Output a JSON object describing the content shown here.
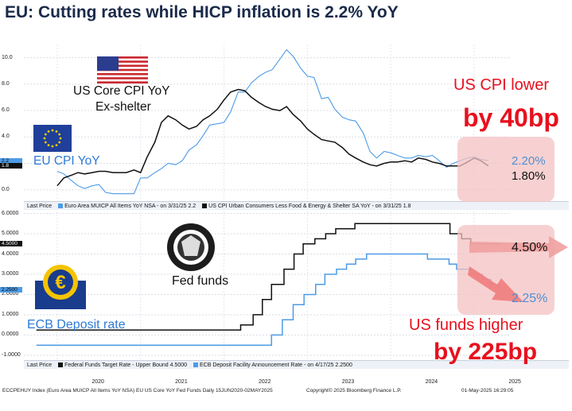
{
  "title": "EU: Cutting rates while HICP inflation is 2.2% YoY",
  "colors": {
    "eu": "#4d9be6",
    "us": "#111111",
    "red": "#e8101e",
    "pink": "#f4c2c2"
  },
  "chart_data": [
    {
      "type": "line",
      "yticks": [
        "10.0",
        "8.0",
        "6.0",
        "4.0",
        "2.0",
        "0.0"
      ],
      "ylim": [
        -0.8,
        11.0
      ],
      "last_prices": [
        "2.2",
        "1.8"
      ],
      "legend": {
        "label": "Last Price",
        "items": [
          "Euro Area MUICP All Items YoY NSA - on 3/31/25 2.2",
          "US CPI Urban Consumers Less Food & Energy & Shelter SA YoY - on 3/31/25 1.8"
        ]
      },
      "series": [
        {
          "name": "Euro Area MUICP All Items YoY NSA",
          "values": [
            [
              2020.0,
              1.4
            ],
            [
              2020.08,
              1.2
            ],
            [
              2020.17,
              0.7
            ],
            [
              2020.25,
              0.3
            ],
            [
              2020.33,
              0.1
            ],
            [
              2020.42,
              0.3
            ],
            [
              2020.5,
              0.4
            ],
            [
              2020.58,
              -0.2
            ],
            [
              2020.67,
              -0.3
            ],
            [
              2020.75,
              -0.3
            ],
            [
              2020.83,
              -0.3
            ],
            [
              2020.92,
              -0.3
            ],
            [
              2021.0,
              0.9
            ],
            [
              2021.08,
              0.9
            ],
            [
              2021.17,
              1.3
            ],
            [
              2021.25,
              1.6
            ],
            [
              2021.33,
              2.0
            ],
            [
              2021.42,
              1.9
            ],
            [
              2021.5,
              2.2
            ],
            [
              2021.58,
              3.0
            ],
            [
              2021.67,
              3.4
            ],
            [
              2021.75,
              4.1
            ],
            [
              2021.83,
              4.9
            ],
            [
              2021.92,
              5.0
            ],
            [
              2022.0,
              5.1
            ],
            [
              2022.08,
              5.9
            ],
            [
              2022.17,
              7.4
            ],
            [
              2022.25,
              7.4
            ],
            [
              2022.33,
              8.1
            ],
            [
              2022.42,
              8.6
            ],
            [
              2022.5,
              8.9
            ],
            [
              2022.58,
              9.1
            ],
            [
              2022.67,
              9.9
            ],
            [
              2022.75,
              10.6
            ],
            [
              2022.83,
              10.1
            ],
            [
              2022.92,
              9.2
            ],
            [
              2023.0,
              8.6
            ],
            [
              2023.08,
              8.5
            ],
            [
              2023.17,
              6.9
            ],
            [
              2023.25,
              7.0
            ],
            [
              2023.33,
              6.1
            ],
            [
              2023.42,
              5.5
            ],
            [
              2023.5,
              5.3
            ],
            [
              2023.58,
              5.2
            ],
            [
              2023.67,
              4.3
            ],
            [
              2023.75,
              2.9
            ],
            [
              2023.83,
              2.4
            ],
            [
              2023.92,
              2.9
            ],
            [
              2024.0,
              2.8
            ],
            [
              2024.08,
              2.6
            ],
            [
              2024.17,
              2.4
            ],
            [
              2024.25,
              2.4
            ],
            [
              2024.33,
              2.6
            ],
            [
              2024.42,
              2.5
            ],
            [
              2024.5,
              2.6
            ],
            [
              2024.58,
              2.2
            ],
            [
              2024.67,
              1.7
            ],
            [
              2024.75,
              2.0
            ],
            [
              2024.83,
              2.2
            ],
            [
              2024.92,
              2.4
            ],
            [
              2025.0,
              2.5
            ],
            [
              2025.08,
              2.3
            ],
            [
              2025.17,
              2.2
            ]
          ]
        },
        {
          "name": "US CPI Urban Consumers Less Food & Energy & Shelter SA YoY",
          "values": [
            [
              2020.0,
              0.3
            ],
            [
              2020.08,
              0.9
            ],
            [
              2020.17,
              1.1
            ],
            [
              2020.25,
              1.3
            ],
            [
              2020.33,
              1.2
            ],
            [
              2020.42,
              1.3
            ],
            [
              2020.5,
              1.4
            ],
            [
              2020.58,
              1.4
            ],
            [
              2020.67,
              1.3
            ],
            [
              2020.75,
              1.3
            ],
            [
              2020.83,
              1.3
            ],
            [
              2020.92,
              1.5
            ],
            [
              2021.0,
              1.3
            ],
            [
              2021.08,
              2.5
            ],
            [
              2021.17,
              3.6
            ],
            [
              2021.25,
              5.1
            ],
            [
              2021.33,
              5.6
            ],
            [
              2021.42,
              5.3
            ],
            [
              2021.5,
              4.9
            ],
            [
              2021.58,
              4.6
            ],
            [
              2021.67,
              4.8
            ],
            [
              2021.75,
              5.3
            ],
            [
              2021.83,
              5.6
            ],
            [
              2021.92,
              6.1
            ],
            [
              2022.0,
              6.8
            ],
            [
              2022.08,
              7.4
            ],
            [
              2022.17,
              7.6
            ],
            [
              2022.25,
              7.5
            ],
            [
              2022.33,
              7.0
            ],
            [
              2022.42,
              6.6
            ],
            [
              2022.5,
              6.3
            ],
            [
              2022.58,
              6.1
            ],
            [
              2022.67,
              6.0
            ],
            [
              2022.75,
              6.3
            ],
            [
              2022.83,
              5.7
            ],
            [
              2022.92,
              5.2
            ],
            [
              2023.0,
              4.6
            ],
            [
              2023.08,
              4.2
            ],
            [
              2023.17,
              3.8
            ],
            [
              2023.25,
              3.7
            ],
            [
              2023.33,
              3.6
            ],
            [
              2023.42,
              3.2
            ],
            [
              2023.5,
              2.7
            ],
            [
              2023.58,
              2.4
            ],
            [
              2023.67,
              2.1
            ],
            [
              2023.75,
              1.9
            ],
            [
              2023.83,
              1.8
            ],
            [
              2023.92,
              2.0
            ],
            [
              2024.0,
              2.1
            ],
            [
              2024.08,
              2.1
            ],
            [
              2024.17,
              2.2
            ],
            [
              2024.25,
              2.1
            ],
            [
              2024.33,
              2.4
            ],
            [
              2024.42,
              2.3
            ],
            [
              2024.5,
              2.1
            ],
            [
              2024.58,
              2.0
            ],
            [
              2024.67,
              1.8
            ],
            [
              2024.75,
              1.8
            ],
            [
              2024.83,
              1.8
            ],
            [
              2024.92,
              2.1
            ],
            [
              2025.0,
              2.4
            ],
            [
              2025.08,
              2.2
            ],
            [
              2025.17,
              1.8
            ]
          ]
        }
      ]
    },
    {
      "type": "line",
      "yticks": [
        "6.0000",
        "5.0000",
        "4.0000",
        "3.0000",
        "2.0000",
        "1.0000",
        "0.0000",
        "-1.0000"
      ],
      "ylim": [
        -1.2,
        6.1
      ],
      "last_prices": [
        "4.5000",
        "2.2500"
      ],
      "legend": {
        "label": "Last Price",
        "items": [
          "Federal Funds Target Rate - Upper Bound 4.5000",
          "ECB Deposit Facility Announcement Rate - on 4/17/25 2.2500"
        ]
      },
      "series": [
        {
          "name": "Federal Funds Target Rate - Upper Bound",
          "values": [
            [
              2019.75,
              0.25
            ],
            [
              2022.2,
              0.25
            ],
            [
              2022.2,
              0.5
            ],
            [
              2022.35,
              0.5
            ],
            [
              2022.35,
              1.0
            ],
            [
              2022.46,
              1.0
            ],
            [
              2022.46,
              1.75
            ],
            [
              2022.57,
              1.75
            ],
            [
              2022.57,
              2.5
            ],
            [
              2022.72,
              2.5
            ],
            [
              2022.72,
              3.25
            ],
            [
              2022.84,
              3.25
            ],
            [
              2022.84,
              4.0
            ],
            [
              2022.95,
              4.0
            ],
            [
              2022.95,
              4.5
            ],
            [
              2023.09,
              4.5
            ],
            [
              2023.09,
              4.75
            ],
            [
              2023.22,
              4.75
            ],
            [
              2023.22,
              5.0
            ],
            [
              2023.34,
              5.0
            ],
            [
              2023.34,
              5.25
            ],
            [
              2023.57,
              5.25
            ],
            [
              2023.57,
              5.5
            ],
            [
              2024.71,
              5.5
            ],
            [
              2024.71,
              5.0
            ],
            [
              2024.85,
              5.0
            ],
            [
              2024.85,
              4.75
            ],
            [
              2024.96,
              4.75
            ],
            [
              2024.96,
              4.5
            ],
            [
              2025.33,
              4.5
            ]
          ]
        },
        {
          "name": "ECB Deposit Facility Announcement Rate",
          "values": [
            [
              2019.75,
              -0.5
            ],
            [
              2022.57,
              -0.5
            ],
            [
              2022.57,
              0.0
            ],
            [
              2022.7,
              0.0
            ],
            [
              2022.7,
              0.75
            ],
            [
              2022.83,
              0.75
            ],
            [
              2022.83,
              1.5
            ],
            [
              2022.96,
              1.5
            ],
            [
              2022.96,
              2.0
            ],
            [
              2023.1,
              2.0
            ],
            [
              2023.1,
              2.5
            ],
            [
              2023.21,
              2.5
            ],
            [
              2023.21,
              3.0
            ],
            [
              2023.35,
              3.0
            ],
            [
              2023.35,
              3.25
            ],
            [
              2023.47,
              3.25
            ],
            [
              2023.47,
              3.5
            ],
            [
              2023.58,
              3.5
            ],
            [
              2023.58,
              3.75
            ],
            [
              2023.71,
              3.75
            ],
            [
              2023.71,
              4.0
            ],
            [
              2024.44,
              4.0
            ],
            [
              2024.44,
              3.75
            ],
            [
              2024.7,
              3.75
            ],
            [
              2024.7,
              3.5
            ],
            [
              2024.79,
              3.5
            ],
            [
              2024.79,
              3.25
            ],
            [
              2024.96,
              3.25
            ],
            [
              2024.96,
              3.0
            ],
            [
              2025.1,
              3.0
            ],
            [
              2025.1,
              2.75
            ],
            [
              2025.2,
              2.75
            ],
            [
              2025.2,
              2.5
            ],
            [
              2025.3,
              2.5
            ],
            [
              2025.3,
              2.25
            ],
            [
              2025.33,
              2.25
            ]
          ]
        }
      ]
    }
  ],
  "xaxis": {
    "ticks": [
      "2020",
      "2021",
      "2022",
      "2023",
      "2024",
      "2025"
    ],
    "range": [
      2019.6,
      2025.42
    ]
  },
  "annotations": {
    "us_core_cpi": "US Core CPI YoY",
    "ex_shelter": "Ex-shelter",
    "eu_cpi": "EU CPI YoY",
    "us_cpi_lower": "US CPI lower",
    "by_40bp": "by 40bp",
    "eu_cpi_value": "2.20%",
    "us_cpi_value": "1.80%",
    "fed_funds": "Fed funds",
    "ecb_deposit": "ECB Deposit rate",
    "fed_value": "4.50%",
    "ecb_value": "2.25%",
    "us_funds_higher": "US funds higher",
    "by_225bp": "by 225bp"
  },
  "footer": {
    "left": "ECCPEHUY Index (Euro Area MUICP All Items YoY NSA) EU US Core YoY Fed Funds  Daily 15JUN2020-02MAY2025",
    "mid": "Copyright© 2025 Bloomberg Finance L.P.",
    "right": "01-May-2025 16:29:05"
  }
}
